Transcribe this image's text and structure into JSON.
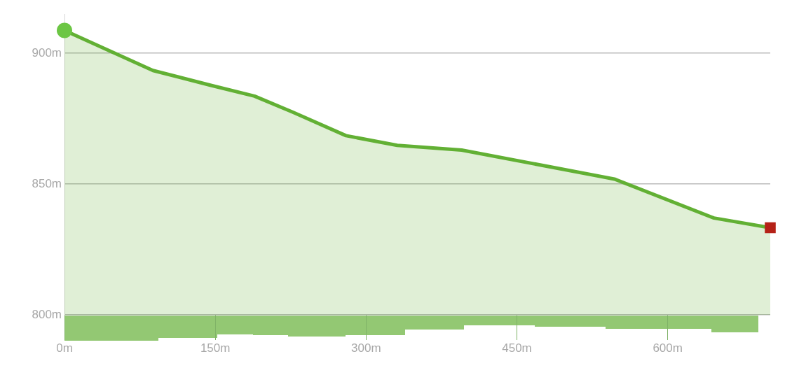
{
  "chart_data": {
    "type": "area",
    "x": [
      0,
      88,
      145,
      189,
      227,
      280,
      331,
      395,
      547,
      646,
      702
    ],
    "series": [
      {
        "type": "area",
        "color": "#62b034",
        "values": [
          908.7,
          893.4,
          887.8,
          883.6,
          877.5,
          868.5,
          864.8,
          863,
          851.9,
          837,
          833.3
        ]
      },
      {
        "type": "scatter",
        "marker": "circle",
        "color": "#6cc644",
        "x": [
          0
        ],
        "values": [
          908.7
        ]
      },
      {
        "type": "scatter",
        "marker": "square",
        "color": "#b52117",
        "x": [
          702
        ],
        "values": [
          833.3
        ]
      }
    ],
    "xlim": [
      0,
      702
    ],
    "xticks": [
      {
        "value": 0,
        "label": "0m"
      },
      {
        "value": 150,
        "label": "150m"
      },
      {
        "value": 300,
        "label": "300m"
      },
      {
        "value": 450,
        "label": "450m"
      },
      {
        "value": 600,
        "label": "600m"
      }
    ],
    "ylim": [
      800,
      915
    ],
    "yticks": [
      {
        "value": 800,
        "label": "800m"
      },
      {
        "value": 850,
        "label": "850m"
      },
      {
        "value": 900,
        "label": "900m"
      }
    ],
    "grid": "y"
  }
}
